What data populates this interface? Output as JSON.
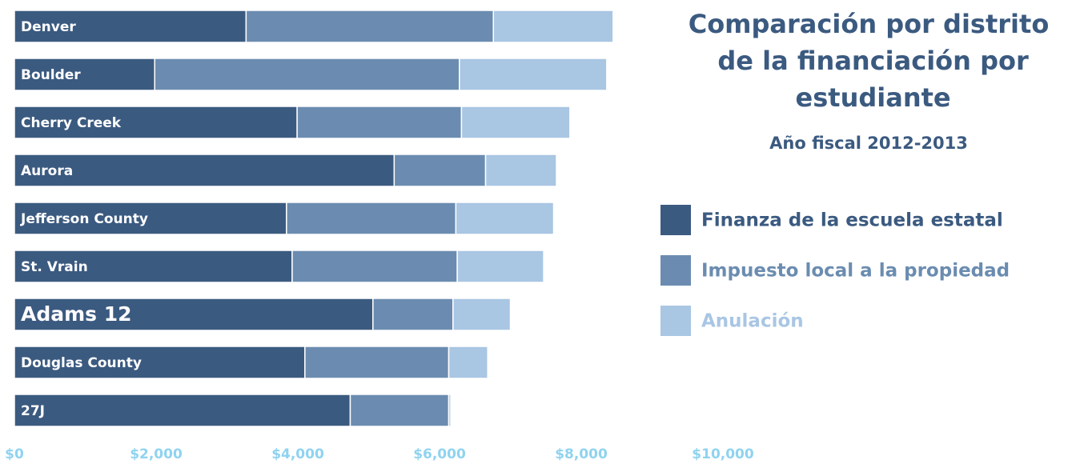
{
  "chart_data": {
    "type": "bar",
    "orientation": "horizontal",
    "stacked": true,
    "title": "Comparación por distrito de la financiación por estudiante",
    "subtitle": "Año fiscal 2012-2013",
    "categories": [
      "Denver",
      "Boulder",
      "Cherry Creek",
      "Aurora",
      "Jefferson County",
      "St. Vrain",
      "Adams 12",
      "Douglas County",
      "27J"
    ],
    "series": [
      {
        "name": "Finanza de la escuela estatal",
        "color": "#3b5a80",
        "values": [
          3270,
          1980,
          3990,
          5360,
          3840,
          3920,
          5060,
          4100,
          4740
        ]
      },
      {
        "name": "Impuesto local a la propiedad",
        "color": "#6b8cb0",
        "values": [
          3490,
          4300,
          2320,
          1290,
          2390,
          2330,
          1130,
          2030,
          1390
        ]
      },
      {
        "name": "Anulación",
        "color": "#a9c6e3",
        "values": [
          1690,
          2080,
          1530,
          1000,
          1380,
          1220,
          810,
          550,
          30
        ]
      }
    ],
    "xlim": [
      0,
      10000
    ],
    "xticks": [
      {
        "value": 0,
        "label": "$0"
      },
      {
        "value": 2000,
        "label": "$2,000"
      },
      {
        "value": 4000,
        "label": "$4,000"
      },
      {
        "value": 6000,
        "label": "$6,000"
      },
      {
        "value": 8000,
        "label": "$8,000"
      },
      {
        "value": 10000,
        "label": "$10,000"
      }
    ]
  }
}
